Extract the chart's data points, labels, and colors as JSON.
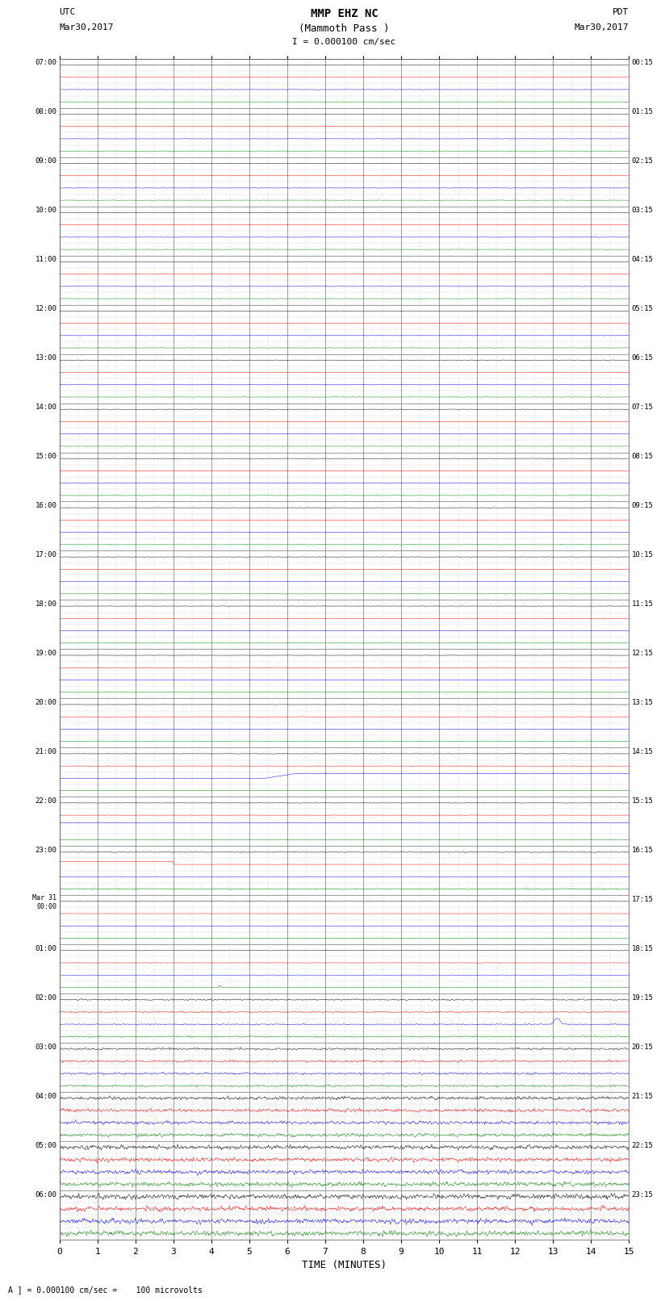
{
  "title_line1": "MMP EHZ NC",
  "title_line2": "(Mammoth Pass )",
  "title_line3": "I = 0.000100 cm/sec",
  "left_label_top": "UTC",
  "left_label_date": "Mar30,2017",
  "right_label_top": "PDT",
  "right_label_date": "Mar30,2017",
  "xlabel": "TIME (MINUTES)",
  "footer": "A ] = 0.000100 cm/sec =    100 microvolts",
  "bg_color": "#ffffff",
  "row_labels_utc": [
    "07:00",
    "08:00",
    "09:00",
    "10:00",
    "11:00",
    "12:00",
    "13:00",
    "14:00",
    "15:00",
    "16:00",
    "17:00",
    "18:00",
    "19:00",
    "20:00",
    "21:00",
    "22:00",
    "23:00",
    "Mar 31\n00:00",
    "01:00",
    "02:00",
    "03:00",
    "04:00",
    "05:00",
    "06:00"
  ],
  "row_labels_pdt": [
    "00:15",
    "01:15",
    "02:15",
    "03:15",
    "04:15",
    "05:15",
    "06:15",
    "07:15",
    "08:15",
    "09:15",
    "10:15",
    "11:15",
    "12:15",
    "13:15",
    "14:15",
    "15:15",
    "16:15",
    "17:15",
    "18:15",
    "19:15",
    "20:15",
    "21:15",
    "22:15",
    "23:15"
  ],
  "n_hours": 24,
  "traces_per_hour": 4,
  "n_total_rows": 96
}
